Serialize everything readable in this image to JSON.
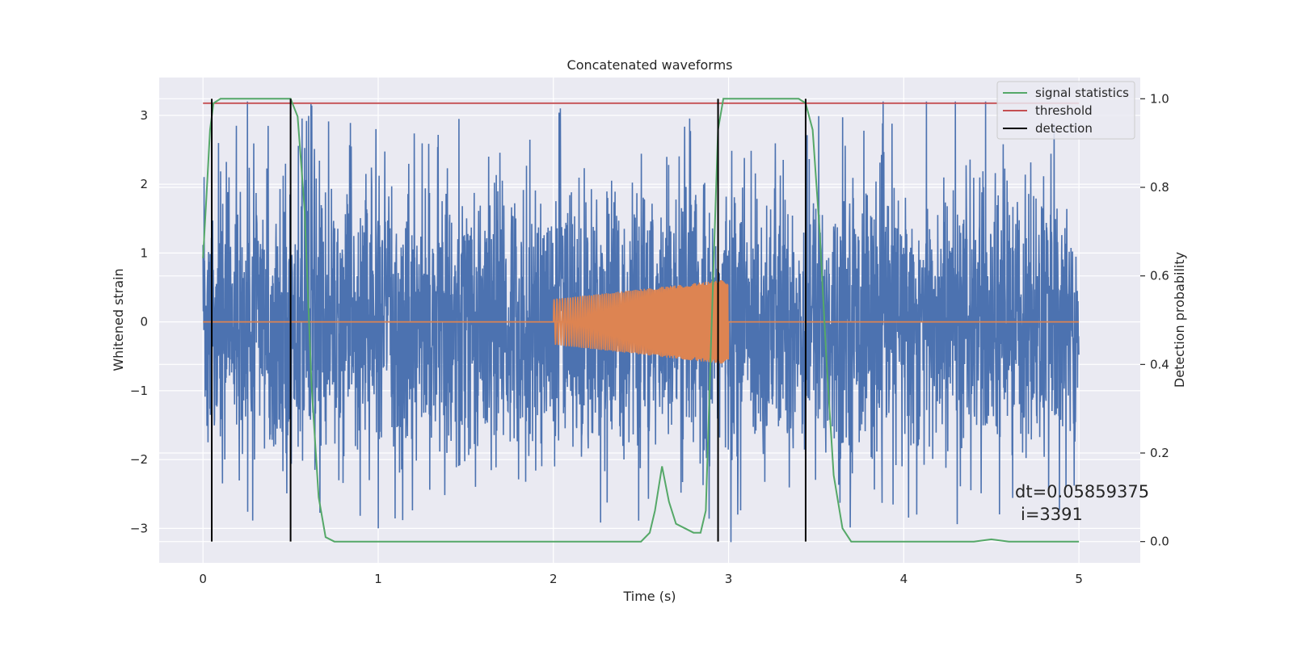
{
  "chart_data": {
    "type": "line",
    "title": "Concatenated waveforms",
    "xlabel": "Time (s)",
    "ylabel_left": "Whitened strain",
    "ylabel_right": "Detection probability",
    "xlim": [
      -0.25,
      5.35
    ],
    "ylim_left": [
      -3.5,
      3.55
    ],
    "ylim_right": [
      -0.048,
      1.048
    ],
    "x_ticks": [
      0,
      1,
      2,
      3,
      4,
      5
    ],
    "y_left_ticks": [
      3,
      2,
      1,
      0,
      -1,
      -2,
      -3
    ],
    "y_left_tick_labels": [
      "3",
      "2",
      "1",
      "0",
      "−1",
      "−2",
      "−3"
    ],
    "y_right_ticks": [
      1.0,
      0.8,
      0.6,
      0.4,
      0.2,
      0.0
    ],
    "y_right_tick_labels": [
      "1.0",
      "0.8",
      "0.6",
      "0.4",
      "0.2",
      "0.0"
    ],
    "grid": true,
    "legend_position": "top-right",
    "legend": [
      {
        "label": "signal statistics",
        "color": "#55a868"
      },
      {
        "label": "threshold",
        "color": "#c44e52"
      },
      {
        "label": "detection",
        "color": "#000000"
      }
    ],
    "colors": {
      "background": "#eaeaf2",
      "grid": "#ffffff",
      "strain": "#4c72b0",
      "injected": "#dd8452",
      "signal_statistics": "#55a868",
      "threshold": "#c44e52",
      "detection": "#000000"
    },
    "strain_noise": {
      "x_start": 0,
      "x_end": 5,
      "typical_amplitude": 1.6,
      "peak_amplitude": 3.2
    },
    "injected_signal": {
      "x_start": 2.0,
      "x_end": 3.0,
      "amplitude_start": 0.33,
      "amplitude_end": 0.62
    },
    "threshold": {
      "value": 0.99,
      "x_start": 0,
      "x_end": 5
    },
    "detections_x": [
      0.05,
      0.5,
      2.94,
      3.44
    ],
    "signal_statistics": {
      "x": [
        0,
        0.02,
        0.04,
        0.06,
        0.1,
        0.15,
        0.3,
        0.45,
        0.5,
        0.54,
        0.58,
        0.62,
        0.66,
        0.7,
        0.75,
        1.0,
        1.5,
        2.0,
        2.5,
        2.55,
        2.58,
        2.62,
        2.66,
        2.7,
        2.75,
        2.8,
        2.84,
        2.87,
        2.9,
        2.94,
        2.97,
        3.0,
        3.2,
        3.4,
        3.44,
        3.48,
        3.52,
        3.56,
        3.6,
        3.65,
        3.7,
        4.0,
        4.4,
        4.5,
        4.6,
        5.0
      ],
      "y": [
        0.64,
        0.78,
        0.93,
        0.99,
        1.0,
        1.0,
        1.0,
        1.0,
        1.0,
        0.96,
        0.75,
        0.35,
        0.1,
        0.01,
        0.0,
        0.0,
        0.0,
        0.0,
        0.0,
        0.02,
        0.07,
        0.17,
        0.09,
        0.04,
        0.03,
        0.02,
        0.02,
        0.07,
        0.45,
        0.93,
        1.0,
        1.0,
        1.0,
        1.0,
        0.99,
        0.93,
        0.7,
        0.4,
        0.15,
        0.03,
        0.0,
        0.0,
        0.0,
        0.005,
        0.0,
        0.0
      ]
    },
    "annotation": {
      "line1": "dt=0.05859375",
      "line2": "i=3391"
    }
  }
}
